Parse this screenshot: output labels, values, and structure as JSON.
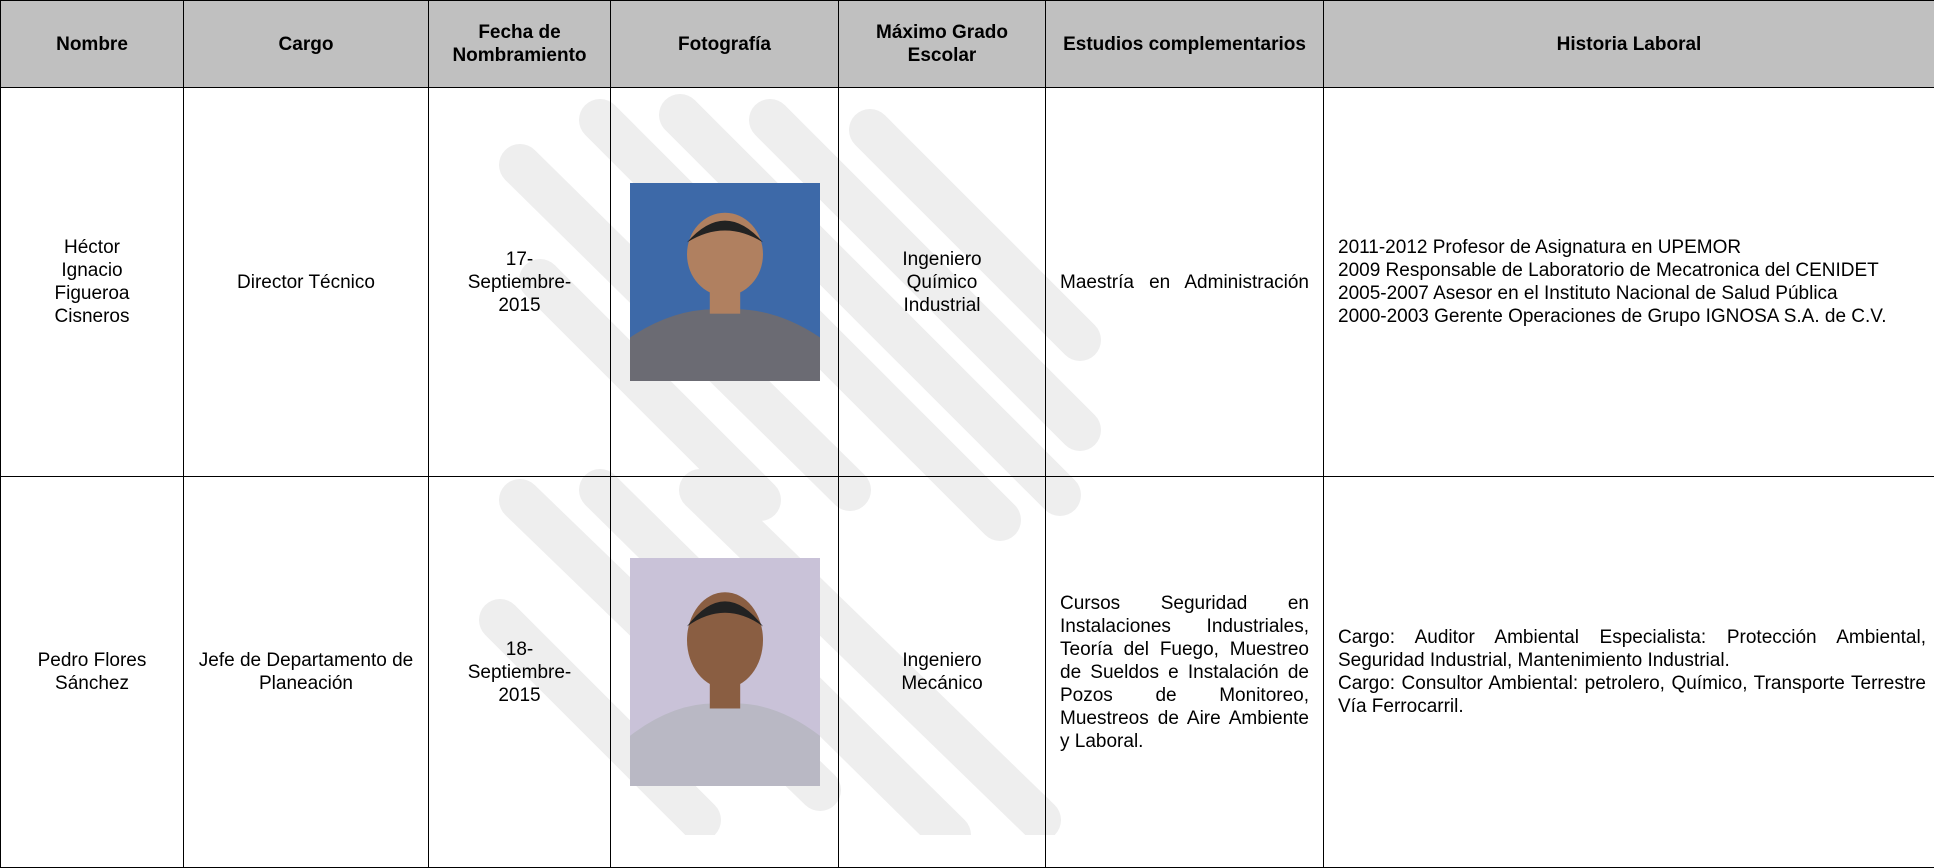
{
  "table": {
    "headers": [
      "Nombre",
      "Cargo",
      "Fecha de Nombramiento",
      "Fotografía",
      "Máximo Grado Escolar",
      "Estudios complementarios",
      "Historia Laboral"
    ],
    "rows": [
      {
        "nombre": "Héctor Ignacio Figueroa Cisneros",
        "cargo": "Director Técnico",
        "fecha": "17-Septiembre-2015",
        "grado": "Ingeniero Químico Industrial",
        "estudios": "Maestría en Administración",
        "historia": [
          "2011-2012 Profesor de Asignatura en UPEMOR",
          "2009 Responsable de Laboratorio de Mecatronica del CENIDET",
          "2005-2007 Asesor en el Instituto Nacional de Salud Pública",
          "2000-2003 Gerente Operaciones de Grupo IGNOSA S.A. de C.V."
        ]
      },
      {
        "nombre": "Pedro Flores Sánchez",
        "cargo": "Jefe de Departamento de Planeación",
        "fecha": "18-Septiembre-2015",
        "grado": "Ingeniero Mecánico",
        "estudios": "Cursos Seguridad en Instalaciones Industriales, Teoría del Fuego, Muestreo de Sueldos e Instalación de Pozos de Monitoreo, Muestreos de Aire Ambiente y Laboral.",
        "historia": [
          "Cargo: Auditor Ambiental Especialista: Protección Ambiental, Seguridad Industrial, Mantenimiento Industrial.",
          "Cargo: Consultor Ambiental: petrolero, Químico, Transporte Terrestre Vía Ferrocarril."
        ]
      }
    ]
  }
}
